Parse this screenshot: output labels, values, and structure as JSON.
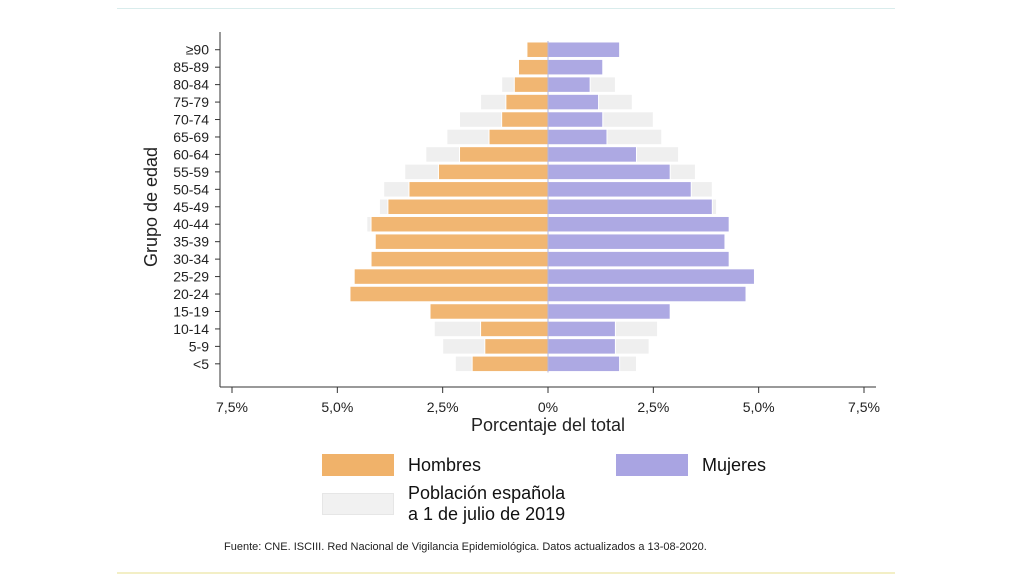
{
  "chart_data": {
    "type": "bar",
    "orientation": "horizontal",
    "xlabel": "Porcentaje del total",
    "ylabel": "Grupo de edad",
    "xlim": [
      -7.5,
      7.5
    ],
    "xticks": [
      -7.5,
      -5.0,
      -2.5,
      0,
      2.5,
      5.0,
      7.5
    ],
    "xtick_labels": [
      "7,5%",
      "5,0%",
      "2,5%",
      "0%",
      "2,5%",
      "5,0%",
      "7,5%"
    ],
    "categories": [
      "<5",
      "5-9",
      "10-14",
      "15-19",
      "20-24",
      "25-29",
      "30-34",
      "35-39",
      "40-44",
      "45-49",
      "50-54",
      "55-59",
      "60-64",
      "65-69",
      "70-74",
      "75-79",
      "80-84",
      "85-89",
      "≥90"
    ],
    "grid": false,
    "series": [
      {
        "name": "Hombres",
        "color": "#f0b26a",
        "values": [
          1.8,
          1.5,
          1.6,
          2.8,
          4.7,
          4.6,
          4.2,
          4.1,
          4.2,
          3.8,
          3.3,
          2.6,
          2.1,
          1.4,
          1.1,
          1.0,
          0.8,
          0.7,
          0.5
        ]
      },
      {
        "name": "Mujeres",
        "color": "#a9a4e2",
        "values": [
          1.7,
          1.6,
          1.6,
          2.9,
          4.7,
          4.9,
          4.3,
          4.2,
          4.3,
          3.9,
          3.4,
          2.9,
          2.1,
          1.4,
          1.3,
          1.2,
          1.0,
          1.3,
          1.7
        ]
      },
      {
        "name": "Población española a 1 de julio de 2019",
        "color": "#efefef",
        "men_values": [
          2.2,
          2.5,
          2.7,
          2.8,
          2.5,
          2.7,
          3.0,
          3.6,
          4.3,
          4.0,
          3.9,
          3.4,
          2.9,
          2.4,
          2.1,
          1.6,
          1.1,
          0.7,
          0.4
        ],
        "women_values": [
          2.1,
          2.4,
          2.6,
          2.5,
          2.4,
          2.6,
          2.9,
          3.5,
          4.2,
          4.0,
          3.9,
          3.5,
          3.1,
          2.7,
          2.5,
          2.0,
          1.6,
          1.2,
          0.8
        ]
      }
    ]
  },
  "legend": {
    "hombres": "Hombres",
    "mujeres": "Mujeres",
    "poblacion": "Población española\na 1 de julio de 2019"
  },
  "source_note": "Fuente: CNE. ISCIII. Red Nacional de Vigilancia Epidemiológica. Datos actualizados a 13-08-2020."
}
